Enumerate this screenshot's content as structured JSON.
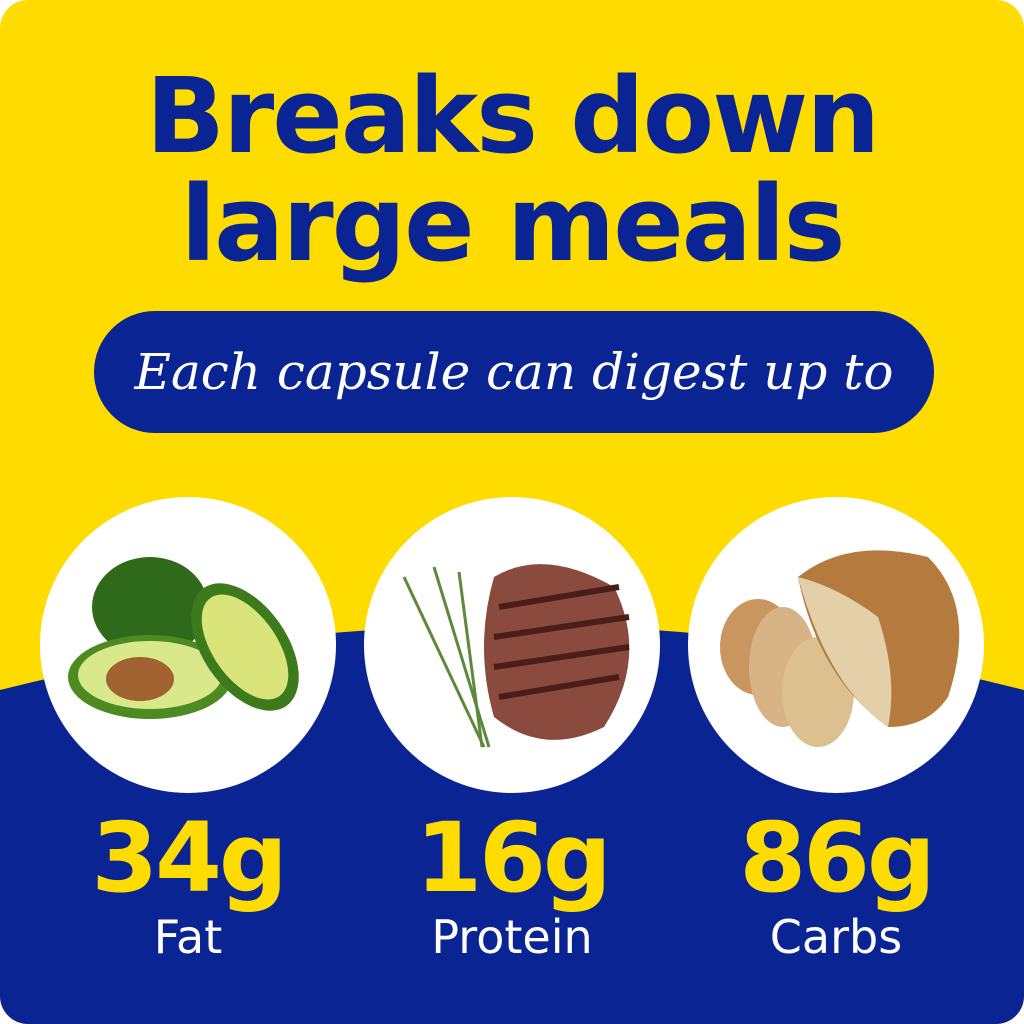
{
  "colors": {
    "yellow": "#FFDC00",
    "blue": "#0B2493"
  },
  "headline": {
    "line1": "Breaks down",
    "line2": "large meals"
  },
  "subtitle": "Each capsule can digest up to",
  "nutrients": [
    {
      "amount": "34g",
      "label": "Fat",
      "icon": "avocado-image"
    },
    {
      "amount": "16g",
      "label": "Protein",
      "icon": "steak-image"
    },
    {
      "amount": "86g",
      "label": "Carbs",
      "icon": "bread-image"
    }
  ]
}
